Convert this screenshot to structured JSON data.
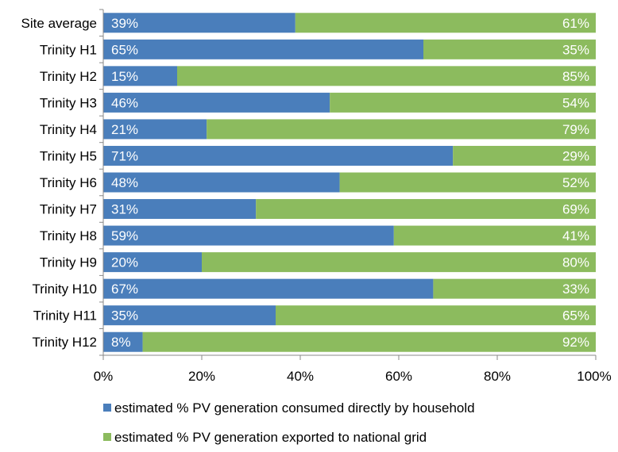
{
  "chart_data": {
    "type": "bar",
    "orientation": "horizontal",
    "stacked": true,
    "categories": [
      "Site average",
      "Trinity H1",
      "Trinity H2",
      "Trinity H3",
      "Trinity H4",
      "Trinity H5",
      "Trinity H6",
      "Trinity H7",
      "Trinity H8",
      "Trinity H9",
      "Trinity H10",
      "Trinity H11",
      "Trinity H12"
    ],
    "series": [
      {
        "name": "estimated % PV generation consumed directly by household",
        "color": "#4a7ebb",
        "values": [
          39,
          65,
          15,
          46,
          21,
          71,
          48,
          31,
          59,
          20,
          67,
          35,
          8
        ],
        "labels": [
          "39%",
          "65%",
          "15%",
          "46%",
          "21%",
          "71%",
          "48%",
          "31%",
          "59%",
          "20%",
          "67%",
          "35%",
          "8%"
        ]
      },
      {
        "name": "estimated % PV generation exported to national grid",
        "color": "#8cbb5e",
        "values": [
          61,
          35,
          85,
          54,
          79,
          29,
          52,
          69,
          41,
          80,
          33,
          65,
          92
        ],
        "labels": [
          "61%",
          "35%",
          "85%",
          "54%",
          "79%",
          "29%",
          "52%",
          "69%",
          "41%",
          "80%",
          "33%",
          "65%",
          "92%"
        ]
      }
    ],
    "x_ticks": [
      "0%",
      "20%",
      "40%",
      "60%",
      "80%",
      "100%"
    ],
    "xlim": [
      0,
      100
    ],
    "grid": false,
    "legend_position": "bottom"
  }
}
